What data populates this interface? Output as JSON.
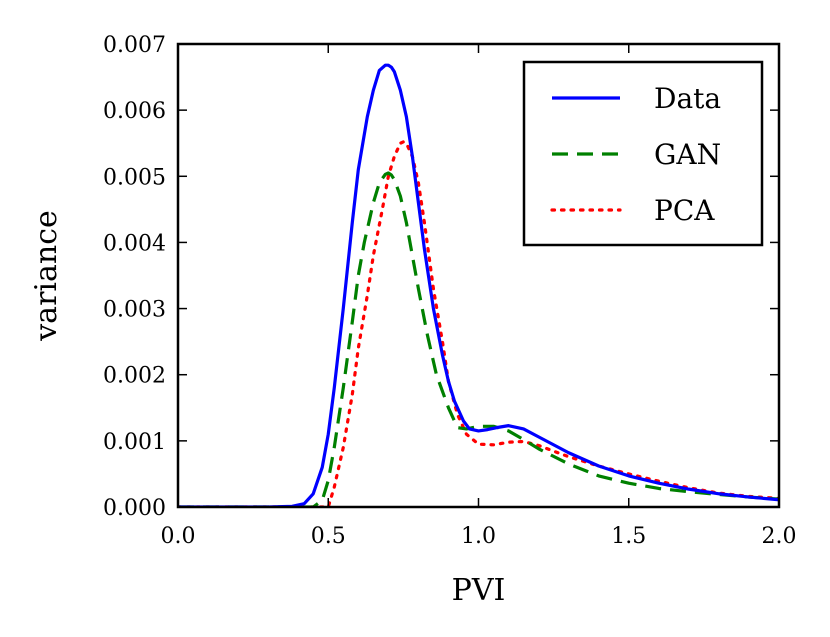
{
  "chart_data": {
    "type": "line",
    "title": "",
    "xlabel": "PVI",
    "ylabel": "variance",
    "xlim": [
      0.0,
      2.0
    ],
    "ylim": [
      0.0,
      0.007
    ],
    "xticks": [
      0.0,
      0.5,
      1.0,
      1.5,
      2.0
    ],
    "xtick_labels": [
      "0.0",
      "0.5",
      "1.0",
      "1.5",
      "2.0"
    ],
    "yticks": [
      0.0,
      0.001,
      0.002,
      0.003,
      0.004,
      0.005,
      0.006,
      0.007
    ],
    "ytick_labels": [
      "0.000",
      "0.001",
      "0.002",
      "0.003",
      "0.004",
      "0.005",
      "0.006",
      "0.007"
    ],
    "grid": false,
    "legend_position": "top-right",
    "series": [
      {
        "name": "Data",
        "color": "#0000ff",
        "style": "solid",
        "x": [
          0.0,
          0.3,
          0.38,
          0.42,
          0.45,
          0.48,
          0.5,
          0.52,
          0.55,
          0.58,
          0.6,
          0.63,
          0.65,
          0.67,
          0.69,
          0.7,
          0.71,
          0.72,
          0.74,
          0.76,
          0.78,
          0.8,
          0.82,
          0.85,
          0.88,
          0.9,
          0.92,
          0.95,
          0.97,
          1.0,
          1.03,
          1.06,
          1.1,
          1.15,
          1.2,
          1.3,
          1.4,
          1.5,
          1.6,
          1.7,
          1.8,
          1.9,
          2.0
        ],
        "y": [
          0.0,
          0.0,
          1e-05,
          5e-05,
          0.0002,
          0.0006,
          0.0011,
          0.0018,
          0.003,
          0.0043,
          0.0051,
          0.0059,
          0.0063,
          0.0066,
          0.00668,
          0.00668,
          0.00665,
          0.00658,
          0.0063,
          0.0059,
          0.0053,
          0.0046,
          0.0039,
          0.003,
          0.0023,
          0.0019,
          0.0016,
          0.0013,
          0.00118,
          0.00115,
          0.00117,
          0.0012,
          0.00123,
          0.00118,
          0.00106,
          0.00082,
          0.00062,
          0.00047,
          0.00036,
          0.00027,
          0.0002,
          0.00015,
          0.00011
        ]
      },
      {
        "name": "GAN",
        "color": "#008000",
        "style": "dashed",
        "x": [
          0.0,
          0.45,
          0.48,
          0.5,
          0.52,
          0.55,
          0.58,
          0.6,
          0.62,
          0.65,
          0.67,
          0.69,
          0.7,
          0.71,
          0.72,
          0.74,
          0.76,
          0.78,
          0.8,
          0.83,
          0.86,
          0.9,
          0.93,
          0.96,
          1.0,
          1.05,
          1.1,
          1.15,
          1.2,
          1.3,
          1.4,
          1.5,
          1.6,
          1.7,
          1.8,
          1.9,
          2.0
        ],
        "y": [
          0.0,
          0.0,
          0.0001,
          0.0004,
          0.0009,
          0.0018,
          0.0028,
          0.0035,
          0.004,
          0.0046,
          0.0049,
          0.00503,
          0.00505,
          0.00502,
          0.00495,
          0.0047,
          0.0043,
          0.0038,
          0.0033,
          0.0026,
          0.002,
          0.0015,
          0.0012,
          0.00118,
          0.00122,
          0.00122,
          0.00115,
          0.00102,
          0.00088,
          0.00065,
          0.00047,
          0.00036,
          0.00028,
          0.00023,
          0.00019,
          0.00015,
          0.00012
        ]
      },
      {
        "name": "PCA",
        "color": "#ff0000",
        "style": "dotted",
        "x": [
          0.0,
          0.5,
          0.52,
          0.55,
          0.58,
          0.6,
          0.63,
          0.65,
          0.68,
          0.7,
          0.72,
          0.74,
          0.75,
          0.76,
          0.78,
          0.8,
          0.82,
          0.85,
          0.88,
          0.9,
          0.93,
          0.96,
          1.0,
          1.05,
          1.1,
          1.15,
          1.2,
          1.3,
          1.4,
          1.5,
          1.6,
          1.7,
          1.8,
          1.9,
          2.0
        ],
        "y": [
          0.0,
          0.0,
          0.0003,
          0.0009,
          0.0017,
          0.0024,
          0.0032,
          0.0038,
          0.0045,
          0.005,
          0.0053,
          0.0055,
          0.00552,
          0.0055,
          0.0053,
          0.0049,
          0.0043,
          0.0033,
          0.0025,
          0.0019,
          0.0014,
          0.0011,
          0.00095,
          0.00094,
          0.00098,
          0.00099,
          0.00093,
          0.00076,
          0.00062,
          0.0005,
          0.00039,
          0.00029,
          0.00021,
          0.00016,
          0.00013
        ]
      }
    ]
  }
}
